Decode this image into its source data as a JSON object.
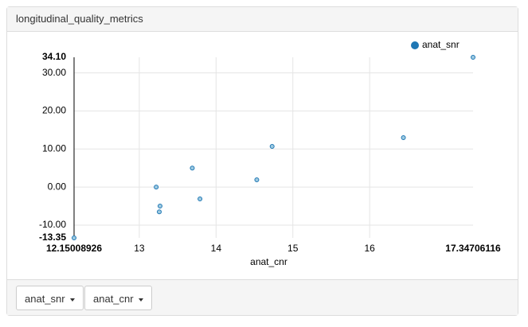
{
  "panel_title": "longitudinal_quality_metrics",
  "controls": [
    "anat_snr",
    "anat_cnr"
  ],
  "chart_data": {
    "type": "scatter",
    "xlabel": "anat_cnr",
    "x": [
      12.15008926,
      13.22,
      13.69,
      13.27,
      13.26,
      13.79,
      14.53,
      14.73,
      16.44,
      17.34706116
    ],
    "series": [
      {
        "name": "anat_snr",
        "color": "#1f77b4",
        "values": [
          -13.35,
          0.0,
          5.0,
          -5.0,
          -6.5,
          -3.1,
          1.9,
          10.7,
          13.0,
          34.1
        ]
      }
    ],
    "xlim": [
      12.15008926,
      17.34706116
    ],
    "ylim": [
      -13.35,
      34.1
    ],
    "xticks": [
      12.15008926,
      13,
      14,
      15,
      16,
      17.34706116
    ],
    "yticks": [
      {
        "value": 34.1,
        "label": "34.10"
      },
      {
        "value": 30,
        "label": "30.00"
      },
      {
        "value": 20,
        "label": "20.00"
      },
      {
        "value": 10,
        "label": "10.00"
      },
      {
        "value": 0,
        "label": "0.00"
      },
      {
        "value": -10,
        "label": "-10.00"
      },
      {
        "value": -13.35,
        "label": "-13.35"
      }
    ],
    "grid": true,
    "legend": "top-right"
  }
}
